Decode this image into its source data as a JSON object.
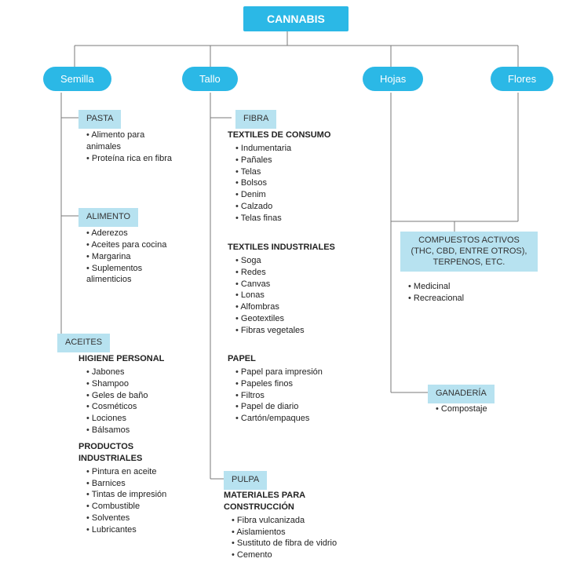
{
  "diagram": {
    "type": "tree",
    "colors": {
      "root_bg": "#2bb8e6",
      "root_text": "#ffffff",
      "branch_bg": "#2bb8e6",
      "branch_text": "#ffffff",
      "subbox_bg": "#b7e2f0",
      "subbox_text": "#333333",
      "line": "#7a7a7a",
      "body_text": "#222222",
      "background": "#ffffff"
    },
    "fonts": {
      "root_size_pt": 14,
      "branch_size_pt": 13,
      "subbox_size_pt": 11,
      "body_size_pt": 11
    },
    "root": {
      "label": "CANNABIS"
    },
    "branches": {
      "semilla": {
        "label": "Semilla"
      },
      "tallo": {
        "label": "Tallo"
      },
      "hojas": {
        "label": "Hojas"
      },
      "flores": {
        "label": "Flores"
      }
    },
    "semilla": {
      "pasta": {
        "title": "PASTA",
        "items": [
          "Alimento para animales",
          "Proteína rica en fibra"
        ]
      },
      "alimento": {
        "title": "ALIMENTO",
        "items": [
          "Aderezos",
          "Aceites para cocina",
          "Margarina",
          "Suplementos alimenticios"
        ]
      },
      "aceites": {
        "title": "ACEITES",
        "higiene": {
          "heading": "HIGIENE PERSONAL",
          "items": [
            "Jabones",
            "Shampoo",
            "Geles de baño",
            "Cosméticos",
            "Lociones",
            "Bálsamos"
          ]
        },
        "industriales": {
          "heading": "PRODUCTOS INDUSTRIALES",
          "items": [
            "Pintura en aceite",
            "Barnices",
            "Tintas de impresión",
            "Combustible",
            "Solventes",
            "Lubricantes"
          ]
        }
      }
    },
    "tallo": {
      "fibra": {
        "title": "FIBRA",
        "textiles_consumo": {
          "heading": "TEXTILES DE CONSUMO",
          "items": [
            "Indumentaria",
            "Pañales",
            "Telas",
            "Bolsos",
            "Denim",
            "Calzado",
            "Telas finas"
          ]
        },
        "textiles_industriales": {
          "heading": "TEXTILES INDUSTRIALES",
          "items": [
            "Soga",
            "Redes",
            "Canvas",
            "Lonas",
            "Alfombras",
            "Geotextiles",
            "Fibras vegetales"
          ]
        },
        "papel": {
          "heading": "PAPEL",
          "items": [
            "Papel para impresión",
            "Papeles finos",
            "Filtros",
            "Papel de diario",
            "Cartón/empaques"
          ]
        }
      },
      "pulpa": {
        "title": "PULPA",
        "materiales": {
          "heading": "MATERIALES PARA CONSTRUCCIÓN",
          "items": [
            "Fibra vulcanizada",
            "Aislamientos",
            "Sustituto de fibra de vidrio",
            "Cemento"
          ]
        }
      }
    },
    "hojas_flores": {
      "compuestos": {
        "title": "COMPUESTOS ACTIVOS (THC, CBD, ENTRE OTROS), TERPENOS, ETC.",
        "items": [
          "Medicinal",
          "Recreacional"
        ]
      },
      "ganaderia": {
        "title": "GANADERÍA",
        "items": [
          "Compostaje"
        ]
      }
    }
  }
}
